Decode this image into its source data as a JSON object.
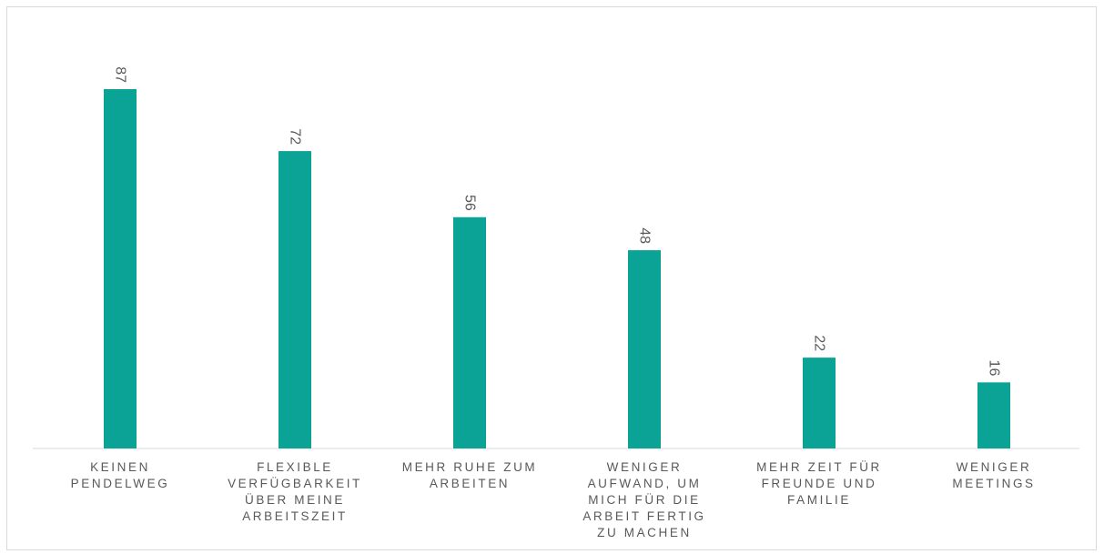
{
  "chart_data": {
    "type": "bar",
    "categories": [
      [
        "KEINEN",
        "PENDELWEG"
      ],
      [
        "FLEXIBLE",
        "VERFÜGBARKEIT",
        "ÜBER MEINE",
        "ARBEITSZEIT"
      ],
      [
        "MEHR RUHE ZUM",
        "ARBEITEN"
      ],
      [
        "WENIGER",
        "AUFWAND, UM",
        "MICH FÜR DIE",
        "ARBEIT FERTIG",
        "ZU MACHEN"
      ],
      [
        "MEHR ZEIT FÜR",
        "FREUNDE UND",
        "FAMILIE"
      ],
      [
        "WENIGER",
        "MEETINGS"
      ]
    ],
    "values": [
      87,
      72,
      56,
      48,
      22,
      16
    ],
    "data_labels": [
      "87",
      "72",
      "56",
      "48",
      "22",
      "16"
    ],
    "ylim": [
      0,
      87
    ],
    "grid": false,
    "legend": "none",
    "bar_color": "#0aa396",
    "axis_color": "#d9d9d9",
    "label_color": "#595959"
  }
}
